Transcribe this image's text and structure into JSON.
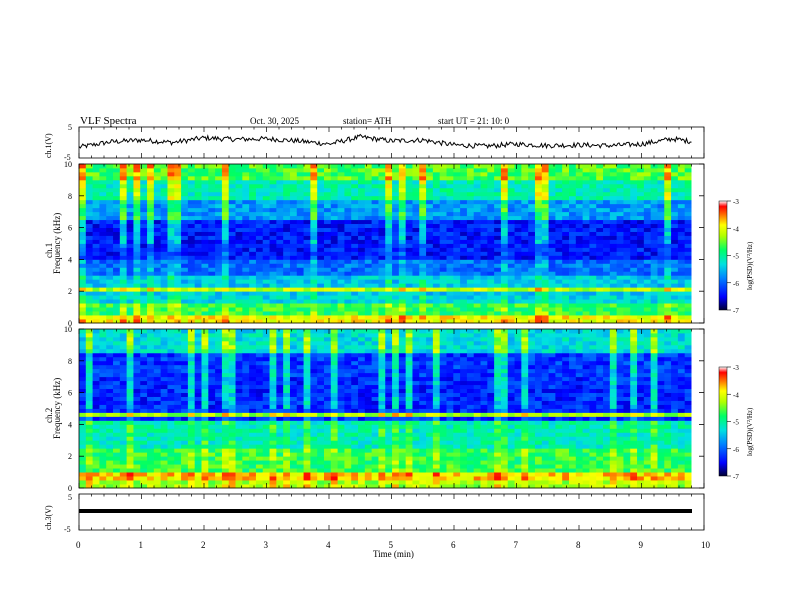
{
  "header": {
    "title": "VLF  Spectra",
    "date": "Oct. 30, 2025",
    "station": "station= ATH",
    "start": "start  UT  =    21: 10: 0"
  },
  "chart_data": [
    {
      "type": "line",
      "panel": "ch1-waveform",
      "ylabel": "ch.1(V)",
      "ylim": [
        -5,
        5
      ],
      "yticks": [
        5,
        -5
      ],
      "x_range_min": [
        0,
        9.8
      ],
      "approx_series": {
        "x": [
          0,
          0.5,
          1.0,
          1.5,
          2.0,
          2.5,
          3.0,
          3.5,
          4.0,
          4.5,
          5.0,
          5.5,
          6.0,
          6.5,
          7.0,
          7.5,
          8.0,
          8.5,
          9.0,
          9.5,
          9.8
        ],
        "y": [
          -1.5,
          0.2,
          0.8,
          0.0,
          1.5,
          1.0,
          1.2,
          0.5,
          -0.5,
          1.8,
          0.5,
          0.8,
          -0.8,
          -1.2,
          -0.5,
          -1.0,
          -0.8,
          -1.0,
          -0.5,
          1.2,
          0.3
        ]
      }
    },
    {
      "type": "heatmap",
      "panel": "ch1-spectrogram",
      "ylabel_channel": "ch.1",
      "ylabel": "Frequency  (kHz)",
      "xlim": [
        0,
        10
      ],
      "ylim": [
        0,
        10
      ],
      "yticks": [
        0,
        2,
        4,
        6,
        8,
        10
      ],
      "colorbar": {
        "label": "log(PSD)(V²/Hz)",
        "ticks": [
          -3,
          -4,
          -5,
          -6,
          -7
        ],
        "range": [
          -7,
          -3
        ]
      }
    },
    {
      "type": "heatmap",
      "panel": "ch2-spectrogram",
      "ylabel_channel": "ch.2",
      "ylabel": "Frequency  (kHz)",
      "xlim": [
        0,
        10
      ],
      "ylim": [
        0,
        10
      ],
      "yticks": [
        0,
        2,
        4,
        6,
        8,
        10
      ],
      "colorbar": {
        "label": "log(PSD)(V²/Hz)",
        "ticks": [
          -3,
          -4,
          -5,
          -6,
          -7
        ],
        "range": [
          -7,
          -3
        ]
      }
    },
    {
      "type": "line",
      "panel": "ch3-waveform",
      "ylabel": "ch.3(V)",
      "ylim": [
        -5,
        5
      ],
      "yticks": [
        5,
        -5
      ],
      "approx_series": {
        "x": [
          0,
          9.8
        ],
        "y": [
          -1.2,
          -1.2
        ]
      }
    }
  ],
  "xaxis": {
    "label": "Time  (min)",
    "ticks": [
      0,
      1,
      2,
      3,
      4,
      5,
      6,
      7,
      8,
      9,
      10
    ]
  }
}
